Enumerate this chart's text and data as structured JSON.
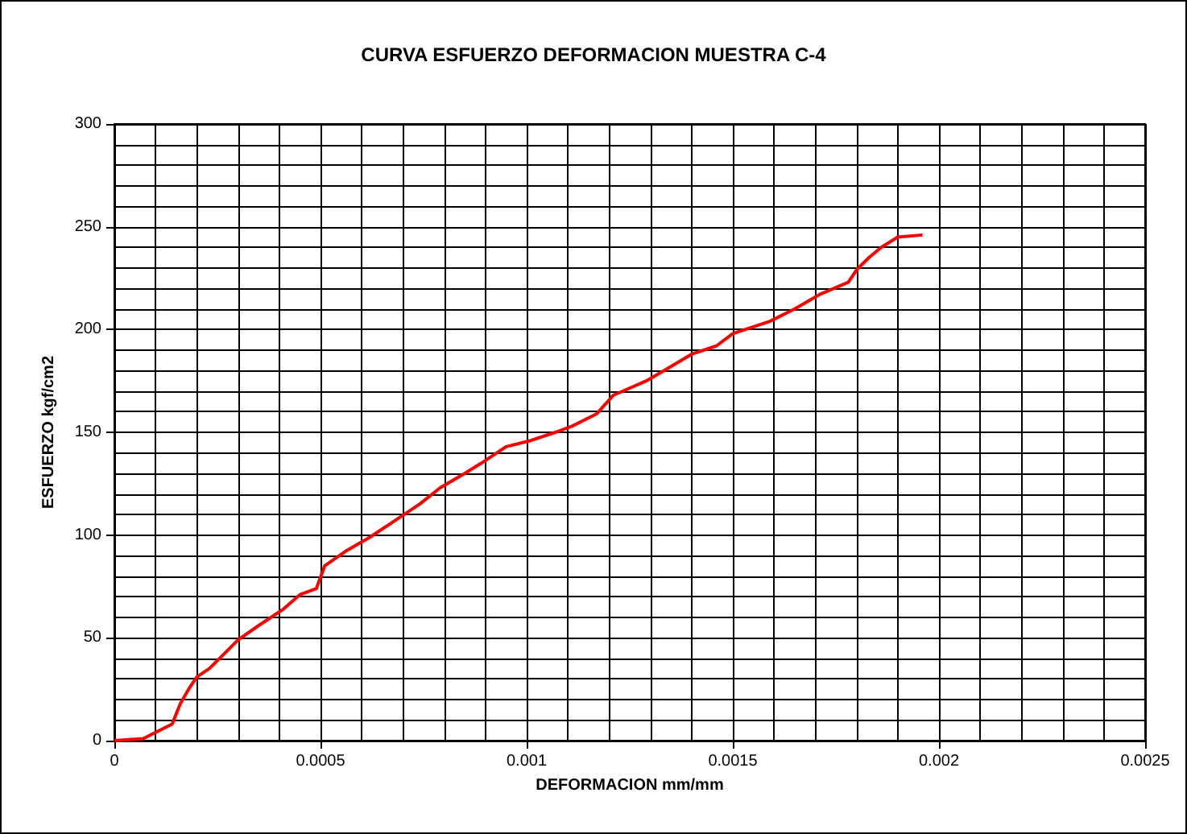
{
  "chart_data": {
    "type": "line",
    "title": "CURVA ESFUERZO DEFORMACION MUESTRA C-4",
    "xlabel": "DEFORMACION mm/mm",
    "ylabel": "ESFUERZO kgf/cm2",
    "x": [
      0,
      7e-05,
      0.0001,
      0.00014,
      0.00015,
      0.00016,
      0.00018,
      0.0002,
      0.00023,
      0.00026,
      0.0003,
      0.00035,
      0.00041,
      0.00045,
      0.00049,
      0.00051,
      0.00056,
      0.00062,
      0.00068,
      0.00074,
      0.00079,
      0.00085,
      0.00089,
      0.00095,
      0.00101,
      0.00107,
      0.00111,
      0.00117,
      0.00121,
      0.00129,
      0.00135,
      0.0014,
      0.00146,
      0.0015,
      0.00159,
      0.00165,
      0.00171,
      0.00178,
      0.0018,
      0.00183,
      0.00186,
      0.0019,
      0.00196
    ],
    "series": [
      {
        "color": "#ff0000",
        "values": [
          0,
          1,
          4,
          8,
          13,
          18,
          25,
          31,
          35,
          41,
          49,
          56,
          64,
          71,
          74,
          85,
          92,
          99,
          107,
          115,
          123,
          130,
          135,
          143,
          146,
          150,
          153,
          159,
          168,
          175,
          182,
          188,
          192,
          198,
          204,
          210,
          217,
          223,
          229,
          235,
          240,
          245,
          246
        ]
      }
    ],
    "xlim": [
      0,
      0.0025
    ],
    "xticks": [
      0,
      0.0005,
      0.001,
      0.0015,
      0.002,
      0.0025
    ],
    "ylim": [
      0,
      300
    ],
    "yticks": [
      0,
      50,
      100,
      150,
      200,
      250,
      300
    ],
    "grid": true,
    "marker": "none",
    "line_style": "solid"
  }
}
